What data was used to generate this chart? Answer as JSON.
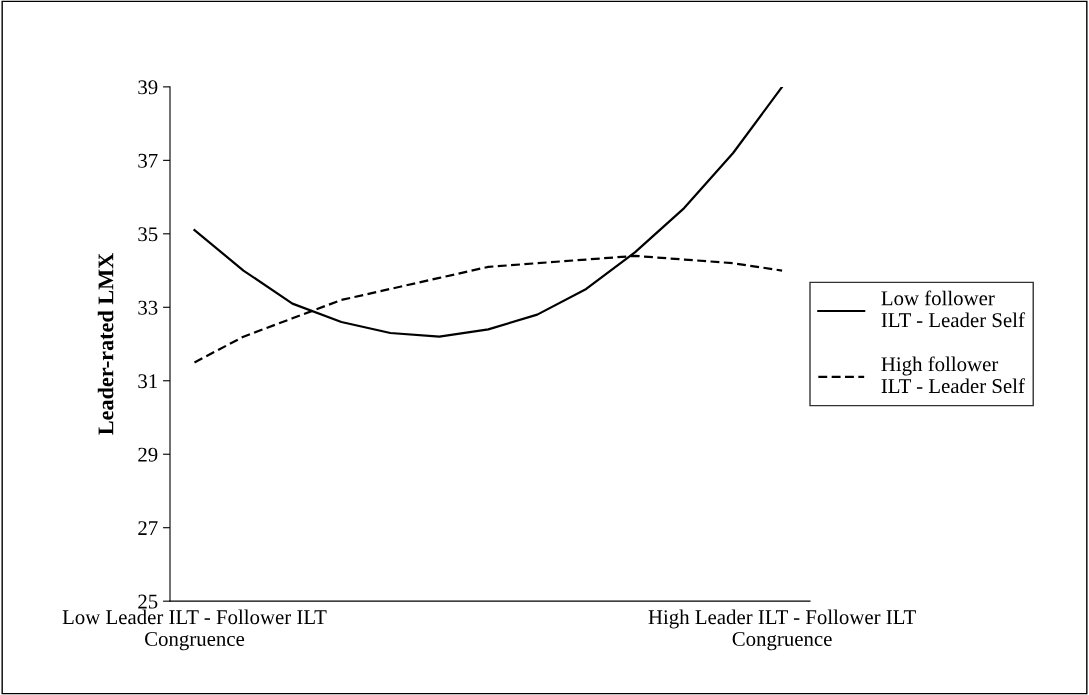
{
  "chart_data": {
    "type": "line",
    "ylabel": "Leader-rated LMX",
    "categories": [
      "Low Leader ILT - Follower ILT\nCongruence",
      null,
      null,
      null,
      null,
      null,
      null,
      null,
      null,
      null,
      null,
      null,
      "High Leader ILT - Follower ILT\nCongruence"
    ],
    "series": [
      {
        "name": "Low follower\nILT - Leader Self",
        "color": "#000000",
        "line_style": "solid",
        "values": [
          35.1,
          34.0,
          33.1,
          32.6,
          32.3,
          32.2,
          32.4,
          32.8,
          33.5,
          34.5,
          35.7,
          37.2,
          39.0
        ]
      },
      {
        "name": "High follower\nILT - Leader Self",
        "color": "#000000",
        "line_style": "dashed",
        "values": [
          31.5,
          32.2,
          32.7,
          33.2,
          33.5,
          33.8,
          34.1,
          34.2,
          34.3,
          34.4,
          34.3,
          34.2,
          34.0
        ]
      }
    ],
    "ylim": [
      25,
      39
    ],
    "yticks": [
      25,
      27,
      29,
      31,
      33,
      35,
      37,
      39
    ],
    "grid": false,
    "legend": "right",
    "marker": "none"
  }
}
